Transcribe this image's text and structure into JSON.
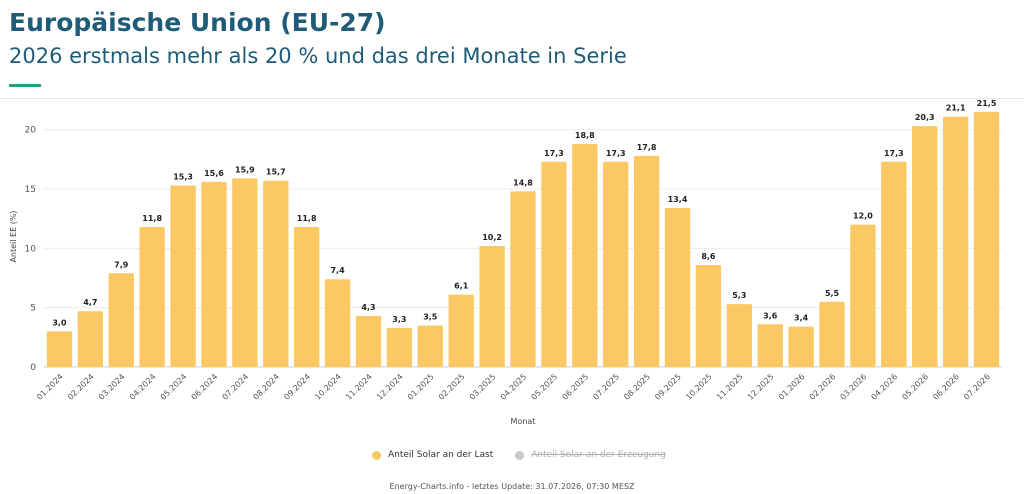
{
  "header": {
    "title": "Europäische Union (EU-27)",
    "subtitle": "2026 erstmals mehr als 20 % und das drei Monate in Serie"
  },
  "colors": {
    "bar": "#fbc863",
    "title": "#1f5c79",
    "accent": "#2a9d7f",
    "disabled_legend": "#c8c8c8"
  },
  "chart_data": {
    "type": "bar",
    "xlabel": "Monat",
    "ylabel": "Anteil EE (%)",
    "ylim": [
      0,
      22
    ],
    "yticks": [
      0,
      5,
      10,
      15,
      20
    ],
    "grid": true,
    "categories": [
      "01.2024",
      "02.2024",
      "03.2024",
      "04.2024",
      "05.2024",
      "06.2024",
      "07.2024",
      "08.2024",
      "09.2024",
      "10.2024",
      "11.2024",
      "12.2024",
      "01.2025",
      "02.2025",
      "03.2025",
      "04.2025",
      "05.2025",
      "06.2025",
      "07.2025",
      "08.2025",
      "09.2025",
      "10.2025",
      "11.2025",
      "12.2025",
      "01.2026",
      "02.2026",
      "03.2026",
      "04.2026",
      "05.2026",
      "06.2026",
      "07.2026"
    ],
    "series": [
      {
        "name": "Anteil Solar an der Last",
        "values": [
          3.0,
          4.7,
          7.9,
          11.8,
          15.3,
          15.6,
          15.9,
          15.7,
          11.8,
          7.4,
          4.3,
          3.3,
          3.5,
          6.1,
          10.2,
          14.8,
          17.3,
          18.8,
          17.3,
          17.8,
          13.4,
          8.6,
          5.3,
          3.6,
          3.4,
          5.5,
          12.0,
          17.3,
          20.3,
          21.1,
          21.5
        ],
        "labels": [
          "3,0",
          "4,7",
          "7,9",
          "11,8",
          "15,3",
          "15,6",
          "15,9",
          "15,7",
          "11,8",
          "7,4",
          "4,3",
          "3,3",
          "3,5",
          "6,1",
          "10,2",
          "14,8",
          "17,3",
          "18,8",
          "17,3",
          "17,8",
          "13,4",
          "8,6",
          "5,3",
          "3,6",
          "3,4",
          "5,5",
          "12,0",
          "17,3",
          "20,3",
          "21,1",
          "21,5"
        ]
      }
    ],
    "legend": [
      {
        "label": "Anteil Solar an der Last",
        "enabled": true
      },
      {
        "label": "Anteil Solar an der Erzeugung",
        "enabled": false
      }
    ],
    "legend_position": "bottom"
  },
  "footer": {
    "text": "Energy-Charts.info - letztes Update: 31.07.2026, 07:30 MESZ"
  }
}
